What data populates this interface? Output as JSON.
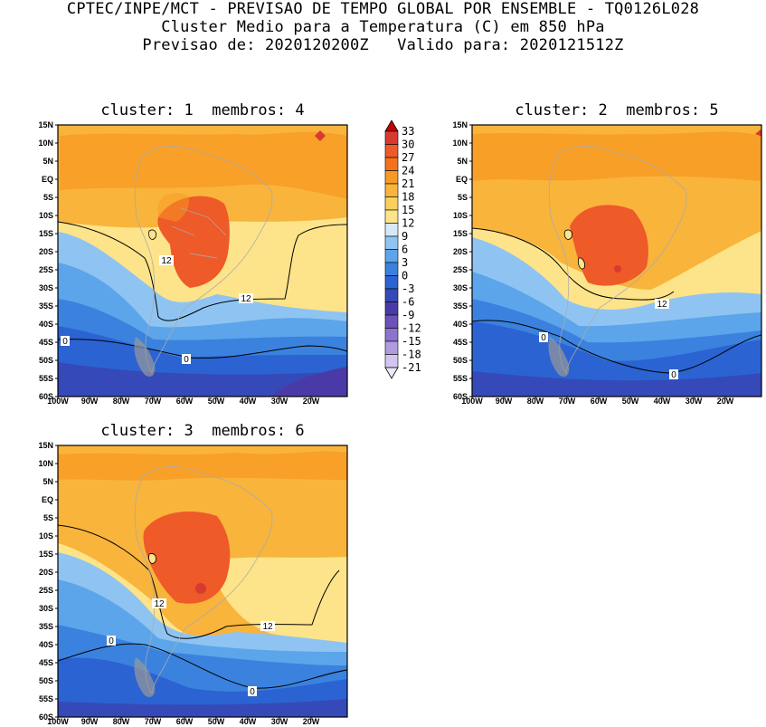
{
  "header": {
    "line1": "CPTEC/INPE/MCT - PREVISAO DE TEMPO GLOBAL POR ENSEMBLE - TQ0126L028",
    "line2": "Cluster Medio para a Temperatura (C) em 850 hPa",
    "line3": "Previsao de: 2020120200Z   Valido para: 2020121512Z"
  },
  "axes": {
    "lat_labels": [
      "15N",
      "10N",
      "5N",
      "EQ",
      "5S",
      "10S",
      "15S",
      "20S",
      "25S",
      "30S",
      "35S",
      "40S",
      "45S",
      "50S",
      "55S",
      "60S"
    ],
    "lon_labels": [
      "100W",
      "90W",
      "80W",
      "70W",
      "60W",
      "50W",
      "40W",
      "30W",
      "20W"
    ]
  },
  "colorbar": {
    "labels": [
      "33",
      "30",
      "27",
      "24",
      "21",
      "18",
      "15",
      "12",
      "9",
      "6",
      "3",
      "0",
      "-3",
      "-6",
      "-9",
      "-12",
      "-15",
      "-18",
      "-21"
    ],
    "colors": [
      "#c80000",
      "#d83a32",
      "#ee5a28",
      "#f4731a",
      "#f79a22",
      "#f9b43c",
      "#fbcf5c",
      "#fde48a",
      "#d6e8f8",
      "#8fc4f2",
      "#5ca5ea",
      "#3a82de",
      "#2b63d2",
      "#3549b8",
      "#4a3aa8",
      "#6a52b8",
      "#8c74cc",
      "#b09ae0",
      "#d2c6f0",
      "#ece8f8"
    ]
  },
  "panels": [
    {
      "title": "cluster: 1  membros: 4",
      "contour_labels": [
        "12",
        "12",
        "0",
        "0"
      ]
    },
    {
      "title": "cluster: 2  membros: 5",
      "contour_labels": [
        "12",
        "0",
        "0"
      ]
    },
    {
      "title": "cluster: 3  membros: 6",
      "contour_labels": [
        "12",
        "12",
        "0",
        "0"
      ]
    }
  ]
}
